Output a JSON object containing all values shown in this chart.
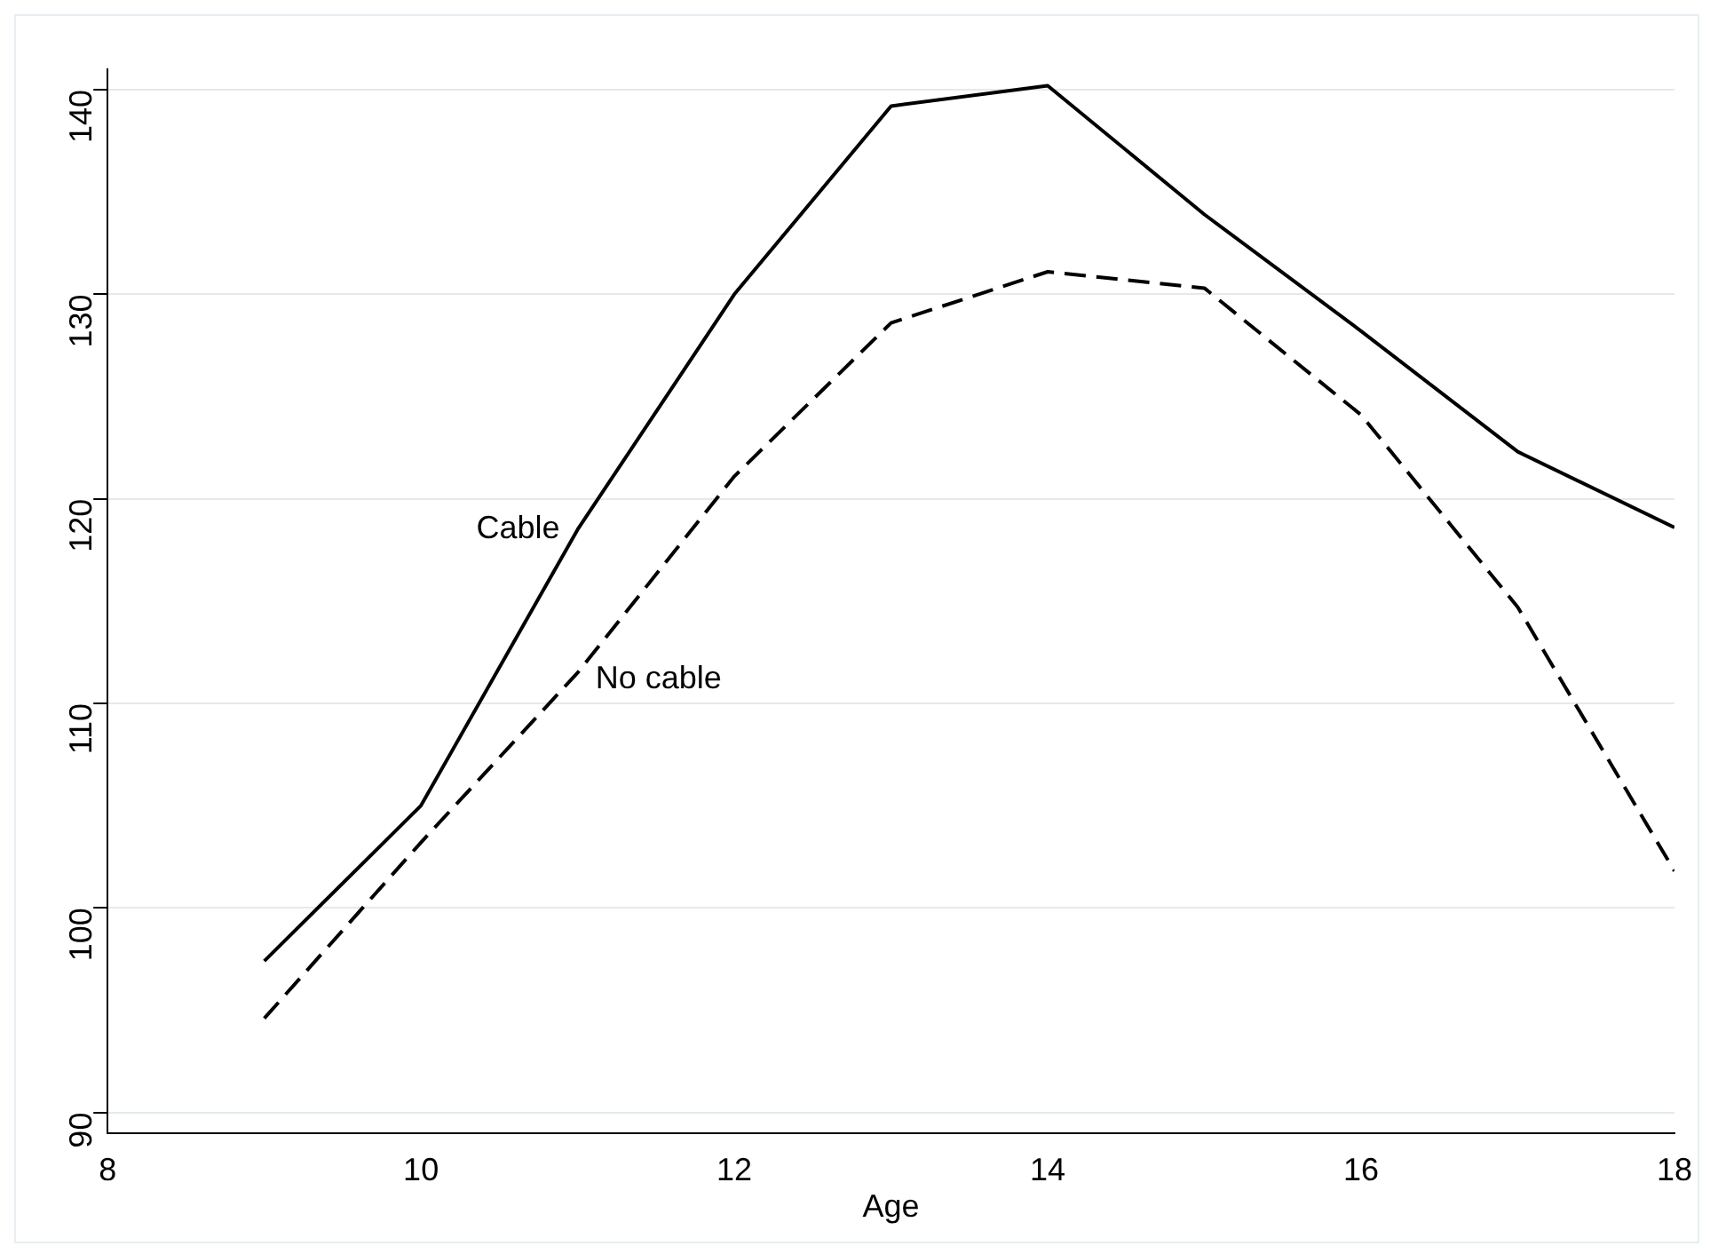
{
  "chart_data": {
    "type": "line",
    "xlabel": "Age",
    "x": [
      9,
      10,
      11,
      12,
      13,
      14,
      15,
      16,
      17,
      18
    ],
    "series": [
      {
        "name": "Cable",
        "color": "#000000",
        "line_style": "solid",
        "values": [
          97.4,
          105.0,
          118.5,
          130.0,
          139.2,
          140.2,
          133.9,
          128.2,
          122.3,
          118.6
        ]
      },
      {
        "name": "No cable",
        "color": "#000000",
        "line_style": "dashed",
        "values": [
          94.6,
          103.2,
          111.5,
          121.1,
          128.6,
          131.1,
          130.3,
          124.1,
          114.7,
          101.8
        ]
      }
    ],
    "xlim": [
      8,
      18
    ],
    "xticks": [
      8,
      10,
      12,
      14,
      16,
      18
    ],
    "ylim": [
      89,
      141
    ],
    "yticks": [
      90,
      100,
      110,
      120,
      130,
      140
    ],
    "grid": "y",
    "legend": false,
    "marker": "none"
  }
}
